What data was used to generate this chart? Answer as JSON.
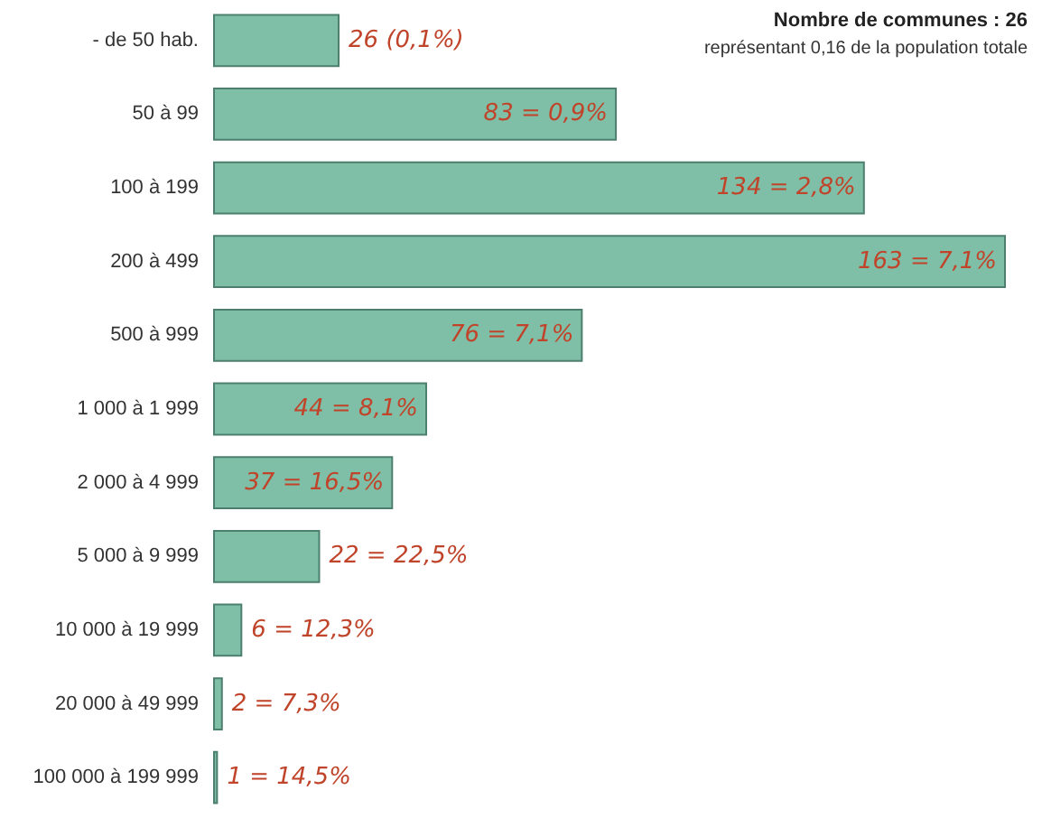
{
  "chart_data": {
    "type": "bar",
    "orientation": "horizontal",
    "categories": [
      "- de 50 hab.",
      "50 à 99",
      "100 à 199",
      "200 à 499",
      "500 à 999",
      "1 000 à 1 999",
      "2 000 à 4 999",
      "5 000 à 9 999",
      "10 000 à 19 999",
      "20 000 à 49 999",
      "100 000 à 199 999"
    ],
    "values": [
      26,
      83,
      134,
      163,
      76,
      44,
      37,
      22,
      6,
      2,
      1
    ],
    "value_labels": [
      "26 (0,1%)",
      "83 = 0,9%",
      "134 = 2,8%",
      "163 = 7,1%",
      "76 = 7,1%",
      "44 = 8,1%",
      "37 = 16,5%",
      "22 = 22,5%",
      "6 = 12,3%",
      "2 = 7,3%",
      "1 = 14,5%"
    ],
    "color": "#7fbfa8",
    "annotations": [
      "Nombre de communes : 26",
      "représentant 0,16 de la population totale"
    ]
  }
}
